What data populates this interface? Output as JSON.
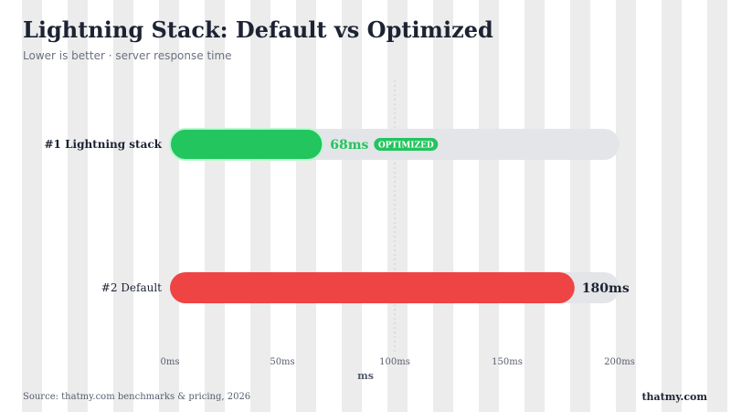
{
  "header": {
    "title": "Lightning Stack: Default vs Optimized",
    "subtitle": "Lower is better · server response time"
  },
  "footer": {
    "source": "Source: thatmy.com benchmarks & pricing, 2026",
    "brand": "thatmy.com"
  },
  "chart_data": {
    "type": "bar",
    "orientation": "horizontal",
    "categories": [
      "#1  Lightning stack",
      "#2  Default"
    ],
    "values": [
      68,
      180
    ],
    "value_labels": [
      "68ms",
      "180ms"
    ],
    "badges": [
      "OPTIMIZED",
      ""
    ],
    "bar_colors": [
      "#22c55e",
      "#ef4444"
    ],
    "track_color": "#e4e5e8",
    "xlabel": "ms",
    "xlim": [
      0,
      200
    ],
    "xticks": [
      0,
      50,
      100,
      150,
      200
    ],
    "xtick_labels": [
      "0ms",
      "50ms",
      "100ms",
      "150ms",
      "200ms"
    ],
    "reference_line": 100,
    "grid": false
  }
}
